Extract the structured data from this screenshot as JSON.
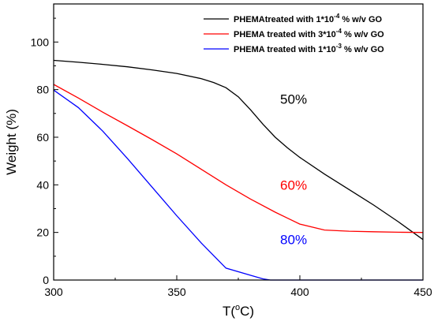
{
  "chart_data": {
    "type": "line",
    "xlabel": "T(",
    "xlabel_sup": "o",
    "xlabel_unit": "C)",
    "ylabel": "Weight  (%)",
    "xlim": [
      300,
      450
    ],
    "ylim": [
      0,
      116
    ],
    "x_ticks": [
      300,
      350,
      400,
      450
    ],
    "y_ticks": [
      0,
      20,
      40,
      60,
      80,
      100
    ],
    "legend_position": "top-right",
    "grid": false,
    "series": [
      {
        "name": "PHEMAtreated with 1*10",
        "name_sup": "-4",
        "name_suffix": " % w/v GO",
        "color": "#000000",
        "x": [
          300,
          310,
          320,
          330,
          340,
          350,
          360,
          365,
          370,
          375,
          380,
          385,
          390,
          395,
          400,
          410,
          420,
          430,
          440,
          450
        ],
        "y": [
          92.3,
          91.5,
          90.6,
          89.6,
          88.3,
          86.8,
          84.6,
          83.0,
          80.8,
          77.0,
          71.5,
          65.5,
          60.0,
          55.5,
          51.5,
          44.5,
          38.0,
          31.5,
          24.5,
          17.0
        ]
      },
      {
        "name": "PHEMA treated with 3*10",
        "name_sup": "-4",
        "name_suffix": " % w/v GO",
        "color": "#ff0000",
        "x": [
          300,
          310,
          320,
          330,
          340,
          350,
          360,
          370,
          380,
          390,
          395,
          400,
          410,
          420,
          430,
          440,
          450
        ],
        "y": [
          82.2,
          76.5,
          70.5,
          64.8,
          59.0,
          53.0,
          46.5,
          40.0,
          34.0,
          28.5,
          26.0,
          23.5,
          21.0,
          20.5,
          20.3,
          20.1,
          20.0
        ]
      },
      {
        "name": "PHEMA treated with 1*10",
        "name_sup": "-3",
        "name_suffix": " % w/v GO",
        "color": "#0000ff",
        "x": [
          300,
          310,
          320,
          330,
          340,
          350,
          360,
          370,
          380,
          385,
          388,
          390,
          400,
          420,
          450
        ],
        "y": [
          79.8,
          72.5,
          62.5,
          51.0,
          39.0,
          27.0,
          15.5,
          5.0,
          2.0,
          0.5,
          0.0,
          0.0,
          0.0,
          0.0,
          0.0
        ]
      }
    ],
    "annotations": [
      {
        "text": "50%",
        "x": 392,
        "y": 74,
        "color": "#000000"
      },
      {
        "text": "60%",
        "x": 392,
        "y": 38,
        "color": "#ff0000"
      },
      {
        "text": "80%",
        "x": 392,
        "y": 15,
        "color": "#0000ff"
      }
    ]
  }
}
